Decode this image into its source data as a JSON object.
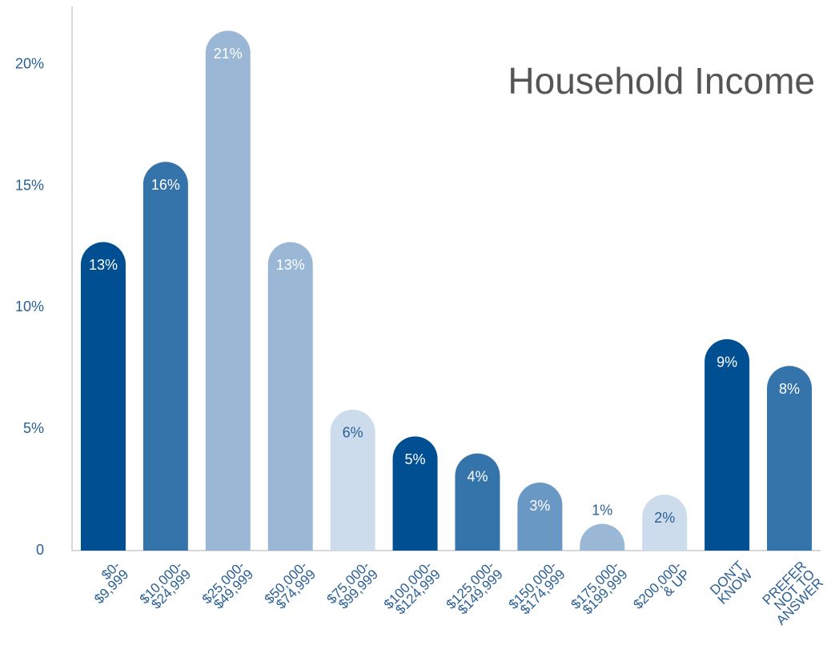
{
  "chart_data": {
    "type": "bar",
    "title": "Household Income",
    "categories": [
      [
        "$0-",
        "$9,999"
      ],
      [
        "$10,000-",
        "$24,999"
      ],
      [
        "$25,000-",
        "$49,999"
      ],
      [
        "$50,000-",
        "$74,999"
      ],
      [
        "$75,000-",
        "$99,999"
      ],
      [
        "$100,000-",
        "$124,999"
      ],
      [
        "$125,000-",
        "$149,999"
      ],
      [
        "$150,000-",
        "$174,999"
      ],
      [
        "$175,000-",
        "$199,999"
      ],
      [
        "$200,000-",
        "& UP"
      ],
      [
        "DON'T",
        "KNOW"
      ],
      [
        "PREFER",
        "NOT TO",
        "ANSWER"
      ]
    ],
    "values": [
      12.7,
      16.0,
      21.4,
      12.7,
      5.8,
      4.7,
      4.0,
      2.8,
      1.1,
      2.3,
      8.7,
      7.6
    ],
    "value_labels": [
      "13%",
      "16%",
      "21%",
      "13%",
      "6%",
      "5%",
      "4%",
      "3%",
      "1%",
      "2%",
      "9%",
      "8%"
    ],
    "colors": [
      "#004f93",
      "#3574ab",
      "#9ab8d5",
      "#9ab8d5",
      "#ccdcec",
      "#004f93",
      "#3574ab",
      "#6a98c4",
      "#9ab8d5",
      "#ccdcec",
      "#004f93",
      "#3574ab"
    ],
    "ylim": [
      0,
      22.4
    ],
    "yticks": [
      0,
      {
        "value": 5,
        "label": "5%"
      },
      {
        "value": 10,
        "label": "10%"
      },
      {
        "value": 15,
        "label": "15%"
      },
      {
        "value": 20,
        "label": "20%"
      }
    ],
    "grid": false
  }
}
